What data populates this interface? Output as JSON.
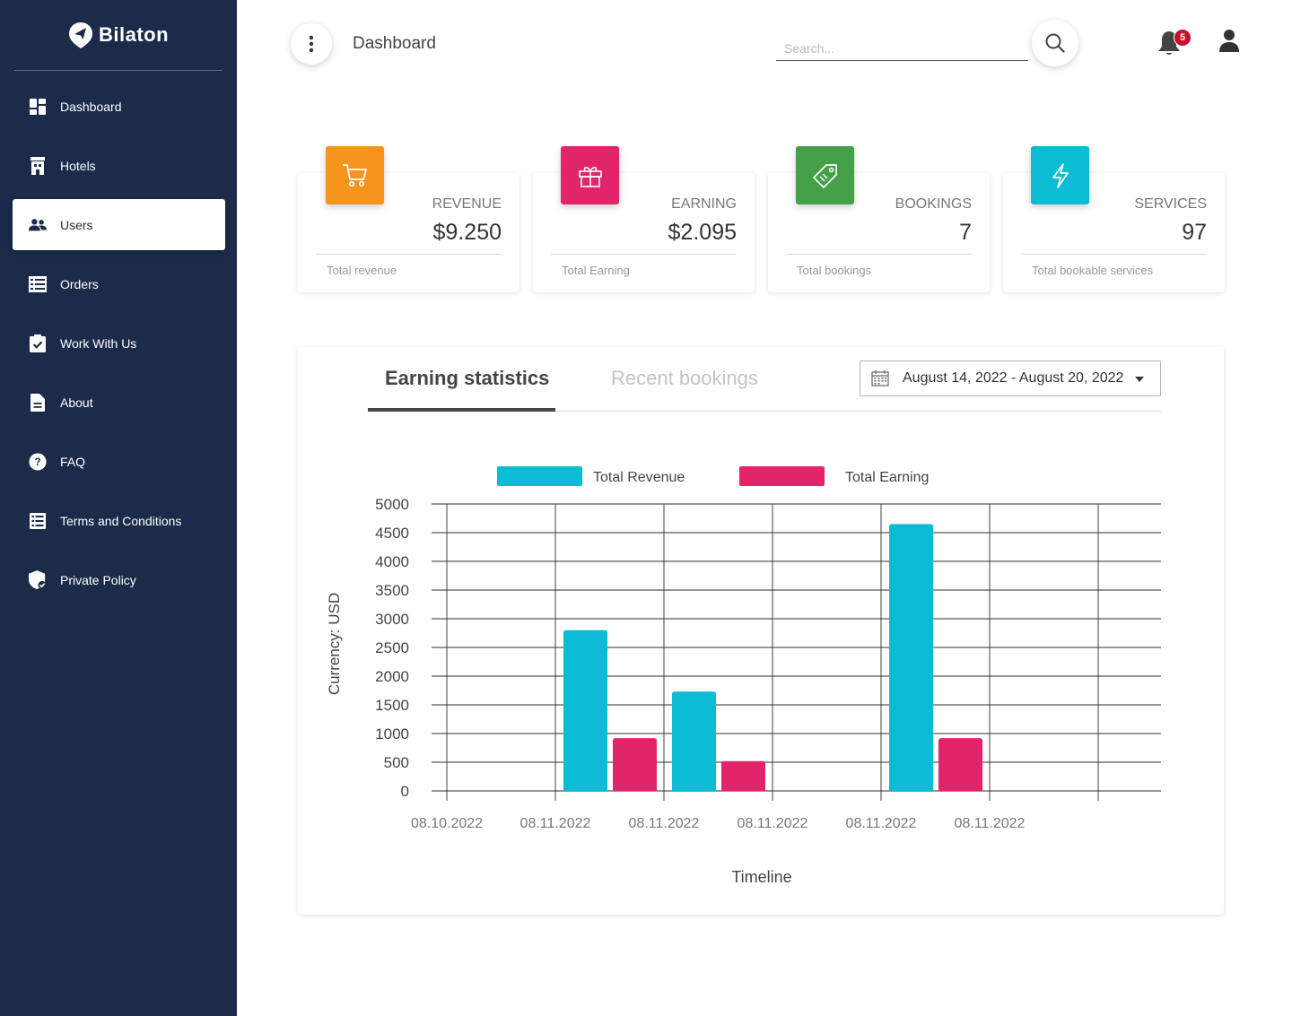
{
  "app": {
    "brand": "Bilaton"
  },
  "sidebar": {
    "items": [
      {
        "label": "Dashboard",
        "icon": "dashboard-icon",
        "active": false
      },
      {
        "label": "Hotels",
        "icon": "hotel-icon",
        "active": false
      },
      {
        "label": "Users",
        "icon": "users-icon",
        "active": true
      },
      {
        "label": "Orders",
        "icon": "orders-icon",
        "active": false
      },
      {
        "label": "Work With Us",
        "icon": "clipboard-check-icon",
        "active": false
      },
      {
        "label": "About",
        "icon": "document-icon",
        "active": false
      },
      {
        "label": "FAQ",
        "icon": "help-icon",
        "active": false
      },
      {
        "label": "Terms and Conditions",
        "icon": "list-icon",
        "active": false
      },
      {
        "label": "Private Policy",
        "icon": "shield-check-icon",
        "active": false
      }
    ]
  },
  "header": {
    "title": "Dashboard",
    "search_placeholder": "Search...",
    "notifications_count": "5"
  },
  "cards": [
    {
      "label": "REVENUE",
      "value": "$9.250",
      "footer": "Total revenue",
      "color": "#f7941d",
      "icon": "cart-icon"
    },
    {
      "label": "EARNING",
      "value": "$2.095",
      "footer": "Total Earning",
      "color": "#e2256a",
      "icon": "gift-icon"
    },
    {
      "label": "BOOKINGS",
      "value": "7",
      "footer": "Total bookings",
      "color": "#43a047",
      "icon": "tag-icon"
    },
    {
      "label": "SERVICES",
      "value": "97",
      "footer": "Total bookable services",
      "color": "#0bbcd4",
      "icon": "lightning-icon"
    }
  ],
  "stats": {
    "tabs": [
      "Earning statistics",
      "Recent bookings"
    ],
    "active_tab": 0,
    "date_range": "August 14, 2022 - August 20, 2022"
  },
  "chart_data": {
    "type": "bar",
    "categories": [
      "08.10.2022",
      "08.11.2022",
      "08.11.2022",
      "08.11.2022",
      "08.11.2022",
      "08.11.2022"
    ],
    "series": [
      {
        "name": "Total Revenue",
        "color": "#0bbcd4",
        "values": [
          0,
          2800,
          1730,
          0,
          4650,
          0
        ]
      },
      {
        "name": "Total Earning",
        "color": "#e2256a",
        "values": [
          0,
          920,
          520,
          0,
          920,
          0
        ]
      }
    ],
    "xlabel": "Timeline",
    "ylabel": "Currency: USD",
    "ylim": [
      0,
      5000
    ],
    "yticks": [
      0,
      500,
      1000,
      1500,
      2000,
      2500,
      3000,
      3500,
      4000,
      4500,
      5000
    ],
    "grid": true,
    "legend": "top-center"
  }
}
